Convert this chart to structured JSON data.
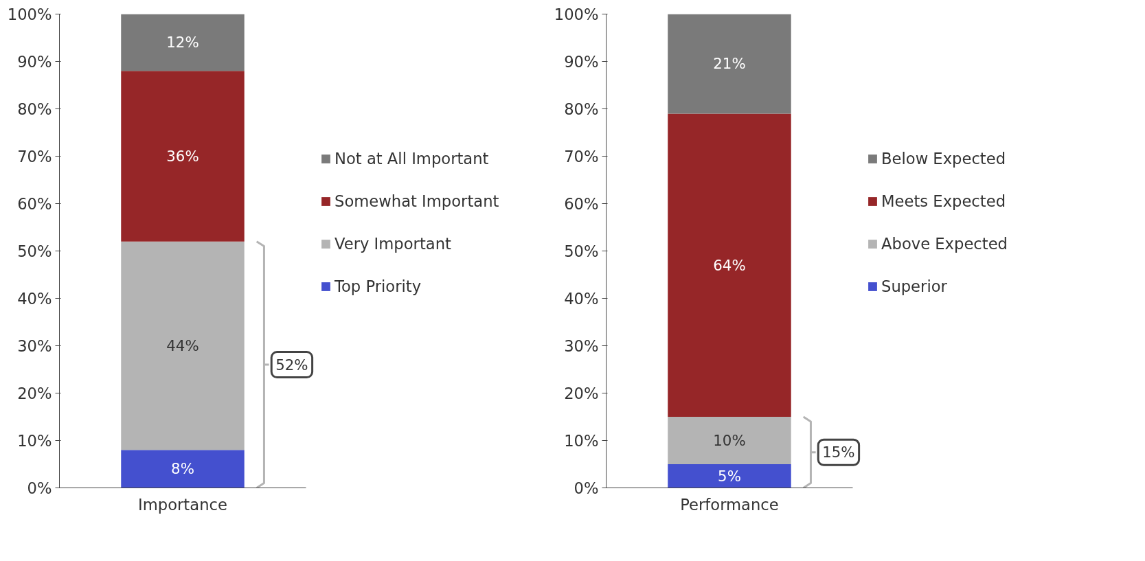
{
  "chart_data": [
    {
      "type": "bar",
      "stacked": true,
      "categories": [
        "Importance"
      ],
      "legend": "right",
      "grid": false,
      "ylim": [
        0,
        100
      ],
      "yticks": [
        {
          "value": 0,
          "label": "0%"
        },
        {
          "value": 10,
          "label": "10%"
        },
        {
          "value": 20,
          "label": "20%"
        },
        {
          "value": 30,
          "label": "30%"
        },
        {
          "value": 40,
          "label": "40%"
        },
        {
          "value": 50,
          "label": "50%"
        },
        {
          "value": 60,
          "label": "60%"
        },
        {
          "value": 70,
          "label": "70%"
        },
        {
          "value": 80,
          "label": "80%"
        },
        {
          "value": 90,
          "label": "90%"
        },
        {
          "value": 100,
          "label": "100%"
        }
      ],
      "series": [
        {
          "name": "Top Priority",
          "color": "#4450cf",
          "values": [
            8
          ],
          "value_labels": [
            "8%"
          ]
        },
        {
          "name": "Very Important",
          "color": "#b4b4b4",
          "values": [
            44
          ],
          "value_labels": [
            "44%"
          ]
        },
        {
          "name": "Somewhat Important",
          "color": "#962628",
          "values": [
            36
          ],
          "value_labels": [
            "36%"
          ]
        },
        {
          "name": "Not at All Important",
          "color": "#7a7a7a",
          "values": [
            12
          ],
          "value_labels": [
            "12%"
          ]
        }
      ],
      "annotations": [
        "52%"
      ]
    },
    {
      "type": "bar",
      "stacked": true,
      "categories": [
        "Performance"
      ],
      "legend": "right",
      "grid": false,
      "ylim": [
        0,
        100
      ],
      "yticks": [
        {
          "value": 0,
          "label": "0%"
        },
        {
          "value": 10,
          "label": "10%"
        },
        {
          "value": 20,
          "label": "20%"
        },
        {
          "value": 30,
          "label": "30%"
        },
        {
          "value": 40,
          "label": "40%"
        },
        {
          "value": 50,
          "label": "50%"
        },
        {
          "value": 60,
          "label": "60%"
        },
        {
          "value": 70,
          "label": "70%"
        },
        {
          "value": 80,
          "label": "80%"
        },
        {
          "value": 90,
          "label": "90%"
        },
        {
          "value": 100,
          "label": "100%"
        }
      ],
      "series": [
        {
          "name": "Superior",
          "color": "#4450cf",
          "values": [
            5
          ],
          "value_labels": [
            "5%"
          ]
        },
        {
          "name": "Above Expected",
          "color": "#b4b4b4",
          "values": [
            10
          ],
          "value_labels": [
            "10%"
          ]
        },
        {
          "name": "Meets Expected",
          "color": "#962628",
          "values": [
            64
          ],
          "value_labels": [
            "64%"
          ]
        },
        {
          "name": "Below Expected",
          "color": "#7a7a7a",
          "values": [
            21
          ],
          "value_labels": [
            "21%"
          ]
        }
      ],
      "annotations": [
        "15%"
      ]
    }
  ]
}
